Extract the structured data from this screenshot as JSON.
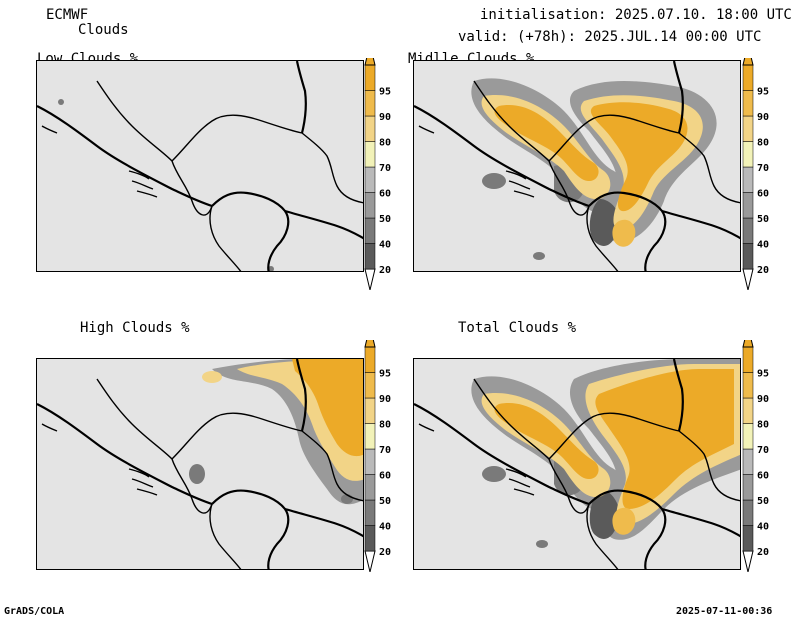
{
  "header": {
    "model": "ECMWF",
    "product": "Clouds",
    "init": "initialisation: 2025.07.10. 18:00 UTC",
    "valid": "valid: (+78h): 2025.JUL.14 00:00 UTC"
  },
  "panels": [
    {
      "title": "Low Clouds %"
    },
    {
      "title": "Midlle Clouds %"
    },
    {
      "title": "High Clouds %"
    },
    {
      "title": "Total Clouds %"
    }
  ],
  "colorbar": {
    "levels": [
      "20",
      "40",
      "50",
      "60",
      "70",
      "80",
      "90",
      "95"
    ],
    "colors": [
      "#5a5a5a",
      "#7a7a7a",
      "#9a9a9a",
      "#bababa",
      "#f2f2b8",
      "#f2d487",
      "#efbb4c",
      "#ecaa28"
    ]
  },
  "footer": {
    "left": "GrADS/COLA",
    "right": "2025-07-11-00:36"
  }
}
